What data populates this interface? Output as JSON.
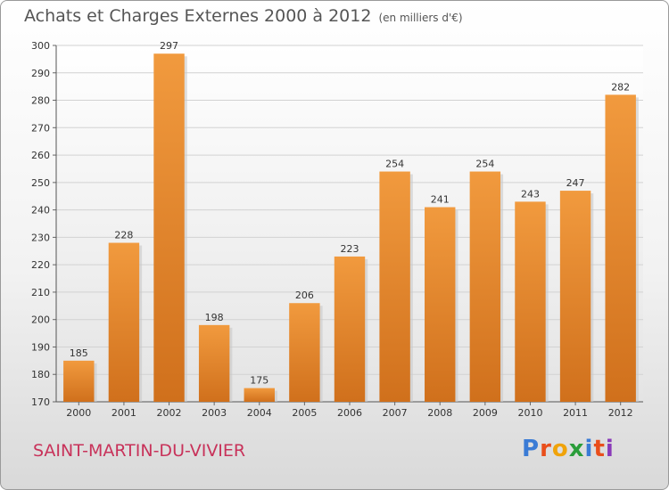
{
  "header": {
    "title": "Achats et Charges Externes 2000 à 2012",
    "subtitle": "(en milliers d'€)"
  },
  "footer": {
    "commune": "SAINT-MARTIN-DU-VIVIER",
    "logo": "Proxiti",
    "logo_colors": [
      "#3a7bd5",
      "#e94e1b",
      "#f0a30a",
      "#2a9d3a",
      "#3a7bd5",
      "#e94e1b",
      "#8a3ab9"
    ]
  },
  "chart_data": {
    "type": "bar",
    "title": "Achats et Charges Externes 2000 à 2012",
    "subtitle": "(en milliers d'€)",
    "categories": [
      "2000",
      "2001",
      "2002",
      "2003",
      "2004",
      "2005",
      "2006",
      "2007",
      "2008",
      "2009",
      "2010",
      "2011",
      "2012"
    ],
    "values": [
      185,
      228,
      297,
      198,
      175,
      206,
      223,
      254,
      241,
      254,
      243,
      247,
      282
    ],
    "ylim": [
      170,
      300
    ],
    "yticks": [
      170,
      180,
      190,
      200,
      210,
      220,
      230,
      240,
      250,
      260,
      270,
      280,
      290,
      300
    ],
    "grid": true,
    "bar_color": "#f19a3e",
    "bar_color_dark": "#d0701c"
  }
}
